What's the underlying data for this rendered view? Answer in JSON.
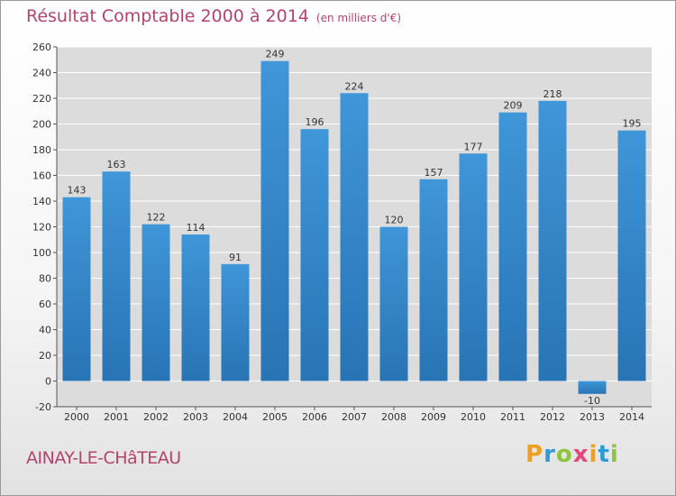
{
  "title": "Résultat Comptable 2000 à 2014",
  "subtitle": "(en milliers d'€)",
  "commune": "AINAY-LE-CHâTEAU",
  "brand": {
    "letters": [
      "P",
      "r",
      "o",
      "x",
      "i",
      "t",
      "i"
    ],
    "colors": [
      "#f0a020",
      "#2f9bd6",
      "#8cc63f",
      "#e8457c",
      "#f0a020",
      "#2f9bd6",
      "#8cc63f"
    ]
  },
  "colors": {
    "bar": "#3f96d8",
    "bar_dark": "#2874b4",
    "grid": "#ffffff",
    "plot_bg": "#dcdcdc",
    "text": "#333333"
  },
  "chart_data": {
    "type": "bar",
    "title": "Résultat Comptable 2000 à 2014",
    "xlabel": "",
    "ylabel": "",
    "categories": [
      "2000",
      "2001",
      "2002",
      "2003",
      "2004",
      "2005",
      "2006",
      "2007",
      "2008",
      "2009",
      "2010",
      "2011",
      "2012",
      "2013",
      "2014"
    ],
    "values": [
      143,
      163,
      122,
      114,
      91,
      249,
      196,
      224,
      120,
      157,
      177,
      209,
      218,
      -10,
      195
    ],
    "data_labels": [
      "143",
      "163",
      "122",
      "114",
      "91",
      "249",
      "196",
      "224",
      "120",
      "157",
      "177",
      "209",
      "218",
      "-10",
      "195"
    ],
    "yticks": [
      -20,
      0,
      20,
      40,
      60,
      80,
      100,
      120,
      140,
      160,
      180,
      200,
      220,
      240,
      260
    ],
    "ylim": [
      -20,
      260
    ],
    "grid": true,
    "legend": "none"
  }
}
